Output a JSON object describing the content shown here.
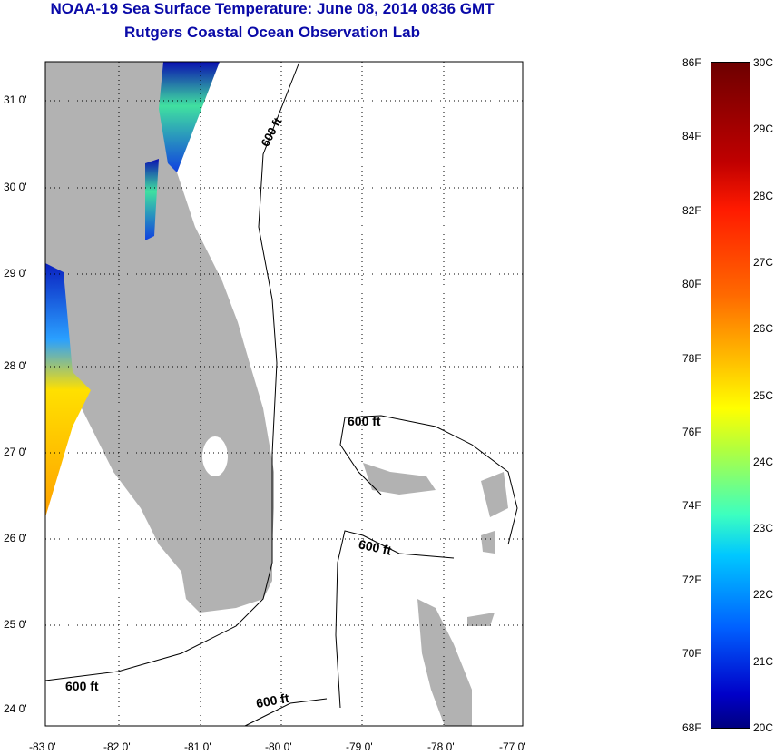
{
  "title": {
    "line1": "NOAA-19 Sea Surface Temperature:  June 08, 2014 0836 GMT",
    "line2": "Rutgers Coastal Ocean Observation Lab"
  },
  "map": {
    "lat_labels": [
      "31 0'",
      "30 0'",
      "29 0'",
      "28 0'",
      "27 0'",
      "26 0'",
      "25 0'",
      "24 0'"
    ],
    "lon_labels": [
      "-83 0'",
      "-82 0'",
      "-81 0'",
      "-80 0'",
      "-79 0'",
      "-78 0'",
      "-77 0'"
    ],
    "contour_labels": [
      "600 ft",
      "600 ft",
      "600 ft",
      "600 ft",
      "600 ft"
    ],
    "land_color": "#b2b2b2"
  },
  "colorbar": {
    "f_labels": [
      "86F",
      "84F",
      "82F",
      "80F",
      "78F",
      "76F",
      "74F",
      "72F",
      "70F",
      "68F"
    ],
    "c_labels": [
      "30C",
      "29C",
      "28C",
      "27C",
      "26C",
      "25C",
      "24C",
      "23C",
      "22C",
      "21C",
      "20C"
    ]
  }
}
